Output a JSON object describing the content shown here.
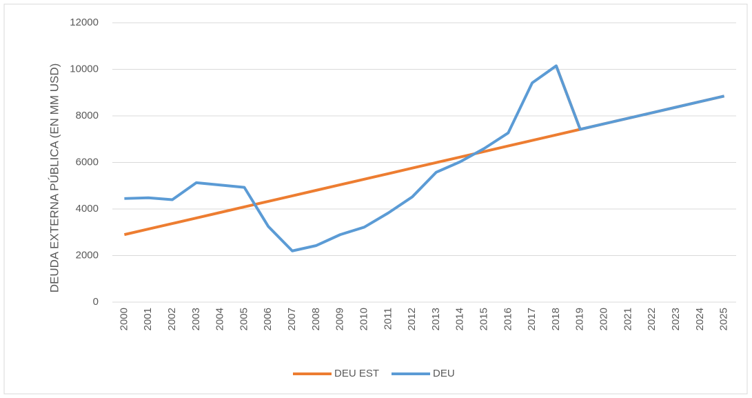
{
  "chart_data": {
    "type": "line",
    "y_label": "DEUDA EXTERNA PÚBLICA (EN MM USD)",
    "categories": [
      "2000",
      "2001",
      "2002",
      "2003",
      "2004",
      "2005",
      "2006",
      "2007",
      "2008",
      "2009",
      "2010",
      "2011",
      "2012",
      "2013",
      "2014",
      "2015",
      "2016",
      "2017",
      "2018",
      "2019",
      "2020",
      "2021",
      "2022",
      "2023",
      "2024",
      "2025"
    ],
    "series": [
      {
        "name": "DEU EST",
        "color": "#ed7d31",
        "values": [
          2900,
          3138,
          3376,
          3614,
          3852,
          4090,
          4328,
          4566,
          4804,
          5042,
          5280,
          5518,
          5756,
          5994,
          6232,
          6470,
          6708,
          6946,
          7184,
          7422,
          7660,
          7898,
          8136,
          8374,
          8612,
          8850
        ]
      },
      {
        "name": "DEU",
        "color": "#5b9bd5",
        "values": [
          4450,
          4480,
          4400,
          5130,
          5030,
          4930,
          3250,
          2200,
          2430,
          2900,
          3220,
          3830,
          4520,
          5580,
          6030,
          6600,
          7270,
          9420,
          10150,
          7422,
          7660,
          7898,
          8136,
          8374,
          8612,
          8850
        ]
      },
      {
        "color": "#ed7d31",
        "values": [
          null,
          null,
          null,
          null,
          null,
          null,
          null,
          null,
          null,
          null,
          null,
          null,
          null,
          null,
          null,
          null,
          null,
          null,
          10150,
          7422,
          null,
          null,
          null,
          null,
          null,
          null
        ]
      }
    ],
    "ylim": [
      0,
      12000
    ],
    "yticks": [
      0,
      2000,
      4000,
      6000,
      8000,
      10000,
      12000
    ],
    "grid": true,
    "legend": "bottom"
  }
}
